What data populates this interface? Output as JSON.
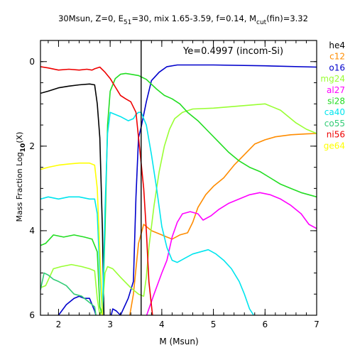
{
  "chart_data": {
    "type": "line",
    "title_parts": {
      "a": "30Msun, Z=0, E",
      "a_sub": "51",
      "b": "=30, mix 1.65-3.59, f=0.14, M",
      "b_sub": "cut",
      "c": "(fin)=3.32"
    },
    "annotation": "Ye=0.4997 (incom-Si)",
    "xlabel": "M (Msun)",
    "ylabel_parts": {
      "a": "Mass Fraction Log",
      "sub": "10",
      "b": "(X)"
    },
    "xlim": [
      1.65,
      7.0
    ],
    "ylim": [
      -6,
      0.5
    ],
    "x_ticks": [
      2,
      3,
      4,
      5,
      6,
      7
    ],
    "y_ticks": [
      0,
      -2,
      -4,
      -6
    ],
    "x_tick_labels": [
      "2",
      "3",
      "4",
      "5",
      "6",
      "7"
    ],
    "y_tick_labels": [
      "0",
      "2",
      "4",
      "6"
    ],
    "mcut_x": 3.6,
    "series": [
      {
        "name": "he4",
        "color": "#000000",
        "points": [
          [
            1.65,
            -0.75
          ],
          [
            1.8,
            -0.7
          ],
          [
            2.0,
            -0.62
          ],
          [
            2.2,
            -0.58
          ],
          [
            2.4,
            -0.55
          ],
          [
            2.6,
            -0.53
          ],
          [
            2.7,
            -0.55
          ],
          [
            2.75,
            -1.0
          ],
          [
            2.8,
            -1.8
          ],
          [
            2.85,
            -4.0
          ],
          [
            2.88,
            -6.0
          ]
        ]
      },
      {
        "name": "c12",
        "color": "#ff8c00",
        "points": [
          [
            3.38,
            -6.0
          ],
          [
            3.45,
            -5.5
          ],
          [
            3.55,
            -4.3
          ],
          [
            3.65,
            -3.85
          ],
          [
            3.8,
            -4.0
          ],
          [
            4.0,
            -4.1
          ],
          [
            4.1,
            -4.15
          ],
          [
            4.2,
            -4.2
          ],
          [
            4.35,
            -4.1
          ],
          [
            4.5,
            -4.05
          ],
          [
            4.6,
            -3.8
          ],
          [
            4.7,
            -3.45
          ],
          [
            4.85,
            -3.15
          ],
          [
            5.0,
            -2.95
          ],
          [
            5.2,
            -2.75
          ],
          [
            5.4,
            -2.45
          ],
          [
            5.6,
            -2.2
          ],
          [
            5.8,
            -1.95
          ],
          [
            6.0,
            -1.85
          ],
          [
            6.2,
            -1.78
          ],
          [
            6.5,
            -1.73
          ],
          [
            6.8,
            -1.71
          ],
          [
            7.0,
            -1.7
          ]
        ]
      },
      {
        "name": "o16",
        "color": "#0000cc",
        "points": [
          [
            1.65,
            -6.5
          ],
          [
            1.75,
            -6.3
          ],
          [
            2.0,
            -6.0
          ],
          [
            2.15,
            -5.75
          ],
          [
            2.3,
            -5.6
          ],
          [
            2.4,
            -5.55
          ],
          [
            2.5,
            -5.6
          ],
          [
            2.6,
            -5.6
          ],
          [
            2.7,
            -5.9
          ],
          [
            2.8,
            -6.3
          ],
          [
            2.88,
            -6.0
          ],
          [
            2.95,
            -6.5
          ],
          [
            3.0,
            -6.1
          ],
          [
            3.05,
            -5.85
          ],
          [
            3.12,
            -5.9
          ],
          [
            3.2,
            -6.0
          ],
          [
            3.35,
            -5.6
          ],
          [
            3.45,
            -5.2
          ],
          [
            3.5,
            -3.2
          ],
          [
            3.55,
            -1.8
          ],
          [
            3.6,
            -1.55
          ],
          [
            3.7,
            -0.95
          ],
          [
            3.8,
            -0.45
          ],
          [
            3.95,
            -0.25
          ],
          [
            4.1,
            -0.12
          ],
          [
            4.3,
            -0.08
          ],
          [
            5.0,
            -0.08
          ],
          [
            6.0,
            -0.1
          ],
          [
            7.0,
            -0.13
          ]
        ]
      },
      {
        "name": "mg24",
        "color": "#99ff33",
        "points": [
          [
            1.65,
            -5.35
          ],
          [
            1.75,
            -5.3
          ],
          [
            1.9,
            -4.9
          ],
          [
            2.05,
            -4.85
          ],
          [
            2.25,
            -4.8
          ],
          [
            2.45,
            -4.85
          ],
          [
            2.6,
            -4.9
          ],
          [
            2.7,
            -4.95
          ],
          [
            2.75,
            -5.6
          ],
          [
            2.8,
            -6.0
          ],
          [
            2.85,
            -5.8
          ],
          [
            2.9,
            -5.0
          ],
          [
            2.95,
            -4.85
          ],
          [
            3.05,
            -4.9
          ],
          [
            3.2,
            -5.1
          ],
          [
            3.4,
            -5.35
          ],
          [
            3.55,
            -5.5
          ],
          [
            3.65,
            -5.55
          ],
          [
            3.7,
            -5.1
          ],
          [
            3.75,
            -4.4
          ],
          [
            3.85,
            -3.4
          ],
          [
            3.95,
            -2.6
          ],
          [
            4.05,
            -2.0
          ],
          [
            4.15,
            -1.6
          ],
          [
            4.25,
            -1.35
          ],
          [
            4.4,
            -1.2
          ],
          [
            4.6,
            -1.12
          ],
          [
            5.0,
            -1.1
          ],
          [
            5.5,
            -1.05
          ],
          [
            6.0,
            -1.0
          ],
          [
            6.3,
            -1.15
          ],
          [
            6.6,
            -1.45
          ],
          [
            6.8,
            -1.6
          ],
          [
            7.0,
            -1.7
          ]
        ]
      },
      {
        "name": "al27",
        "color": "#ff00ff",
        "points": [
          [
            3.65,
            -6.2
          ],
          [
            3.85,
            -5.5
          ],
          [
            4.0,
            -5.0
          ],
          [
            4.1,
            -4.7
          ],
          [
            4.2,
            -4.15
          ],
          [
            4.3,
            -3.8
          ],
          [
            4.4,
            -3.6
          ],
          [
            4.55,
            -3.55
          ],
          [
            4.7,
            -3.6
          ],
          [
            4.8,
            -3.75
          ],
          [
            4.95,
            -3.65
          ],
          [
            5.1,
            -3.5
          ],
          [
            5.3,
            -3.35
          ],
          [
            5.5,
            -3.25
          ],
          [
            5.7,
            -3.15
          ],
          [
            5.9,
            -3.1
          ],
          [
            6.1,
            -3.15
          ],
          [
            6.3,
            -3.25
          ],
          [
            6.5,
            -3.4
          ],
          [
            6.7,
            -3.6
          ],
          [
            6.85,
            -3.85
          ],
          [
            7.0,
            -3.95
          ]
        ]
      },
      {
        "name": "si28",
        "color": "#22dd22",
        "points": [
          [
            1.65,
            -4.35
          ],
          [
            1.75,
            -4.3
          ],
          [
            1.9,
            -4.1
          ],
          [
            2.1,
            -4.15
          ],
          [
            2.3,
            -4.1
          ],
          [
            2.5,
            -4.15
          ],
          [
            2.65,
            -4.2
          ],
          [
            2.75,
            -4.5
          ],
          [
            2.8,
            -5.8
          ],
          [
            2.85,
            -6.0
          ],
          [
            2.9,
            -4.0
          ],
          [
            2.95,
            -1.5
          ],
          [
            3.0,
            -0.7
          ],
          [
            3.1,
            -0.4
          ],
          [
            3.2,
            -0.3
          ],
          [
            3.3,
            -0.28
          ],
          [
            3.4,
            -0.3
          ],
          [
            3.55,
            -0.33
          ],
          [
            3.7,
            -0.42
          ],
          [
            3.9,
            -0.65
          ],
          [
            4.05,
            -0.8
          ],
          [
            4.2,
            -0.88
          ],
          [
            4.35,
            -1.0
          ],
          [
            4.5,
            -1.2
          ],
          [
            4.7,
            -1.4
          ],
          [
            4.9,
            -1.65
          ],
          [
            5.1,
            -1.9
          ],
          [
            5.3,
            -2.15
          ],
          [
            5.5,
            -2.35
          ],
          [
            5.7,
            -2.5
          ],
          [
            5.9,
            -2.6
          ],
          [
            6.1,
            -2.75
          ],
          [
            6.3,
            -2.9
          ],
          [
            6.5,
            -3.0
          ],
          [
            6.7,
            -3.1
          ],
          [
            6.85,
            -3.15
          ],
          [
            7.0,
            -3.2
          ]
        ]
      },
      {
        "name": "ca40",
        "color": "#00e5ee",
        "points": [
          [
            1.65,
            -3.25
          ],
          [
            1.8,
            -3.2
          ],
          [
            2.0,
            -3.25
          ],
          [
            2.2,
            -3.2
          ],
          [
            2.4,
            -3.2
          ],
          [
            2.6,
            -3.25
          ],
          [
            2.7,
            -3.25
          ],
          [
            2.75,
            -3.6
          ],
          [
            2.8,
            -5.0
          ],
          [
            2.85,
            -6.0
          ],
          [
            2.9,
            -3.5
          ],
          [
            2.95,
            -1.7
          ],
          [
            3.0,
            -1.2
          ],
          [
            3.1,
            -1.25
          ],
          [
            3.2,
            -1.3
          ],
          [
            3.35,
            -1.4
          ],
          [
            3.45,
            -1.35
          ],
          [
            3.5,
            -1.25
          ],
          [
            3.55,
            -1.2
          ],
          [
            3.6,
            -1.2
          ],
          [
            3.7,
            -1.5
          ],
          [
            3.8,
            -2.2
          ],
          [
            3.9,
            -3.0
          ],
          [
            4.0,
            -3.9
          ],
          [
            4.1,
            -4.4
          ],
          [
            4.2,
            -4.7
          ],
          [
            4.3,
            -4.75
          ],
          [
            4.45,
            -4.65
          ],
          [
            4.6,
            -4.55
          ],
          [
            4.75,
            -4.5
          ],
          [
            4.9,
            -4.45
          ],
          [
            5.05,
            -4.55
          ],
          [
            5.2,
            -4.7
          ],
          [
            5.35,
            -4.9
          ],
          [
            5.5,
            -5.2
          ],
          [
            5.6,
            -5.5
          ],
          [
            5.7,
            -5.85
          ],
          [
            5.78,
            -6.0
          ]
        ]
      },
      {
        "name": "co55",
        "color": "#33cc77",
        "points": [
          [
            1.65,
            -5.4
          ],
          [
            1.72,
            -5.0
          ],
          [
            1.8,
            -5.05
          ],
          [
            1.9,
            -5.15
          ],
          [
            2.0,
            -5.2
          ],
          [
            2.15,
            -5.3
          ],
          [
            2.3,
            -5.5
          ],
          [
            2.45,
            -5.55
          ],
          [
            2.6,
            -5.7
          ],
          [
            2.7,
            -5.8
          ],
          [
            2.75,
            -6.2
          ]
        ]
      },
      {
        "name": "ni56",
        "color": "#ee0000",
        "points": [
          [
            1.65,
            -0.12
          ],
          [
            1.8,
            -0.15
          ],
          [
            2.0,
            -0.2
          ],
          [
            2.2,
            -0.18
          ],
          [
            2.4,
            -0.2
          ],
          [
            2.55,
            -0.18
          ],
          [
            2.65,
            -0.2
          ],
          [
            2.7,
            -0.17
          ],
          [
            2.8,
            -0.13
          ],
          [
            2.9,
            -0.25
          ],
          [
            3.0,
            -0.4
          ],
          [
            3.1,
            -0.6
          ],
          [
            3.2,
            -0.8
          ],
          [
            3.3,
            -0.88
          ],
          [
            3.4,
            -0.95
          ],
          [
            3.5,
            -1.2
          ],
          [
            3.55,
            -1.8
          ],
          [
            3.6,
            -2.4
          ],
          [
            3.65,
            -3.0
          ],
          [
            3.7,
            -4.0
          ],
          [
            3.75,
            -5.2
          ],
          [
            3.82,
            -6.0
          ]
        ]
      },
      {
        "name": "ge64",
        "color": "#ffff00",
        "points": [
          [
            1.65,
            -2.55
          ],
          [
            1.8,
            -2.5
          ],
          [
            2.0,
            -2.45
          ],
          [
            2.2,
            -2.42
          ],
          [
            2.4,
            -2.4
          ],
          [
            2.6,
            -2.4
          ],
          [
            2.7,
            -2.45
          ],
          [
            2.75,
            -3.0
          ],
          [
            2.8,
            -4.5
          ],
          [
            2.85,
            -6.0
          ]
        ]
      }
    ]
  }
}
